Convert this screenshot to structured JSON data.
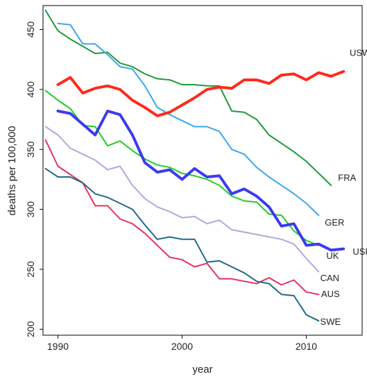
{
  "chart_data": {
    "type": "line",
    "xlabel": "year",
    "ylabel": "deaths per 100,000",
    "xlim": [
      1988.8,
      2014.5
    ],
    "ylim": [
      195,
      470
    ],
    "xticks": [
      "1990",
      "2000",
      "2010"
    ],
    "yticks": [
      "200",
      "250",
      "300",
      "350",
      "400",
      "450"
    ],
    "grid": false,
    "legend": "direct labels at line ends",
    "series": [
      {
        "name": "USW",
        "color": "#ff2a1a",
        "width": 4,
        "x": [
          1990,
          1991,
          1992,
          1993,
          1994,
          1995,
          1996,
          1997,
          1998,
          1999,
          2000,
          2001,
          2002,
          2003,
          2004,
          2005,
          2006,
          2007,
          2008,
          2009,
          2010,
          2011,
          2012,
          2013
        ],
        "y": [
          404,
          410,
          397,
          401,
          403,
          400,
          391,
          385,
          378,
          381,
          387,
          393,
          400,
          402,
          401,
          408,
          408,
          405,
          412,
          413,
          408,
          414,
          411,
          415
        ]
      },
      {
        "name": "FRA",
        "color": "#1f9a3a",
        "width": 2,
        "x": [
          1989,
          1990,
          1991,
          1992,
          1993,
          1994,
          1995,
          1996,
          1997,
          1998,
          1999,
          2000,
          2001,
          2002,
          2003,
          2004,
          2005,
          2006,
          2007,
          2008,
          2009,
          2010,
          2011,
          2012
        ],
        "y": [
          466,
          449,
          442,
          436,
          430,
          431,
          422,
          419,
          413,
          409,
          408,
          404,
          404,
          403,
          403,
          382,
          381,
          375,
          362,
          355,
          348,
          340,
          330,
          320
        ]
      },
      {
        "name": "GER",
        "color": "#3ba6ee",
        "width": 2,
        "x": [
          1990,
          1991,
          1992,
          1993,
          1994,
          1995,
          1996,
          1997,
          1998,
          1999,
          2000,
          2001,
          2002,
          2003,
          2004,
          2005,
          2006,
          2007,
          2008,
          2009,
          2010,
          2011
        ],
        "y": [
          455,
          454,
          438,
          438,
          429,
          419,
          417,
          403,
          385,
          379,
          374,
          369,
          369,
          365,
          350,
          346,
          335,
          327,
          320,
          313,
          305,
          295
        ]
      },
      {
        "name": "USH",
        "color": "#3b3bf0",
        "width": 4,
        "x": [
          1990,
          1991,
          1992,
          1993,
          1994,
          1995,
          1996,
          1997,
          1998,
          1999,
          2000,
          2001,
          2002,
          2003,
          2004,
          2005,
          2006,
          2007,
          2008,
          2009,
          2010,
          2011,
          2012,
          2013
        ],
        "y": [
          382,
          380,
          371,
          362,
          382,
          379,
          362,
          339,
          331,
          333,
          325,
          334,
          327,
          328,
          313,
          317,
          311,
          302,
          286,
          288,
          270,
          271,
          266,
          267
        ]
      },
      {
        "name": "UK",
        "color": "#22cc22",
        "width": 2,
        "x": [
          1989,
          1990,
          1991,
          1992,
          1993,
          1994,
          1995,
          1996,
          1997,
          1998,
          1999,
          2000,
          2001,
          2002,
          2003,
          2004,
          2005,
          2006,
          2007,
          2008,
          2009,
          2010,
          2011
        ],
        "y": [
          399,
          391,
          384,
          370,
          369,
          353,
          357,
          349,
          342,
          337,
          335,
          330,
          328,
          325,
          320,
          311,
          307,
          306,
          296,
          295,
          282,
          274,
          270
        ]
      },
      {
        "name": "CAN",
        "color": "#b0a8dc",
        "width": 2,
        "x": [
          1989,
          1990,
          1991,
          1992,
          1993,
          1994,
          1995,
          1996,
          1997,
          1998,
          1999,
          2000,
          2001,
          2002,
          2003,
          2004,
          2005,
          2006,
          2007,
          2008,
          2009,
          2010,
          2011
        ],
        "y": [
          369,
          362,
          351,
          346,
          341,
          333,
          336,
          320,
          309,
          302,
          298,
          293,
          294,
          288,
          291,
          283,
          281,
          279,
          277,
          275,
          271,
          259,
          248
        ]
      },
      {
        "name": "AUS",
        "color": "#e53060",
        "width": 2,
        "x": [
          1989,
          1990,
          1991,
          1992,
          1993,
          1994,
          1995,
          1996,
          1997,
          1998,
          1999,
          2000,
          2001,
          2002,
          2003,
          2004,
          2005,
          2006,
          2007,
          2008,
          2009,
          2010,
          2011
        ],
        "y": [
          358,
          336,
          329,
          322,
          303,
          303,
          292,
          288,
          280,
          270,
          260,
          258,
          252,
          255,
          242,
          242,
          240,
          238,
          243,
          237,
          241,
          231,
          229
        ]
      },
      {
        "name": "SWE",
        "color": "#1e6a85",
        "width": 2,
        "x": [
          1989,
          1990,
          1991,
          1992,
          1993,
          1994,
          1995,
          1996,
          1997,
          1998,
          1999,
          2000,
          2001,
          2002,
          2003,
          2004,
          2005,
          2006,
          2007,
          2008,
          2009,
          2010,
          2011
        ],
        "y": [
          334,
          327,
          327,
          322,
          313,
          310,
          305,
          300,
          287,
          275,
          277,
          275,
          275,
          256,
          257,
          252,
          247,
          240,
          238,
          229,
          228,
          212,
          207
        ]
      }
    ]
  }
}
